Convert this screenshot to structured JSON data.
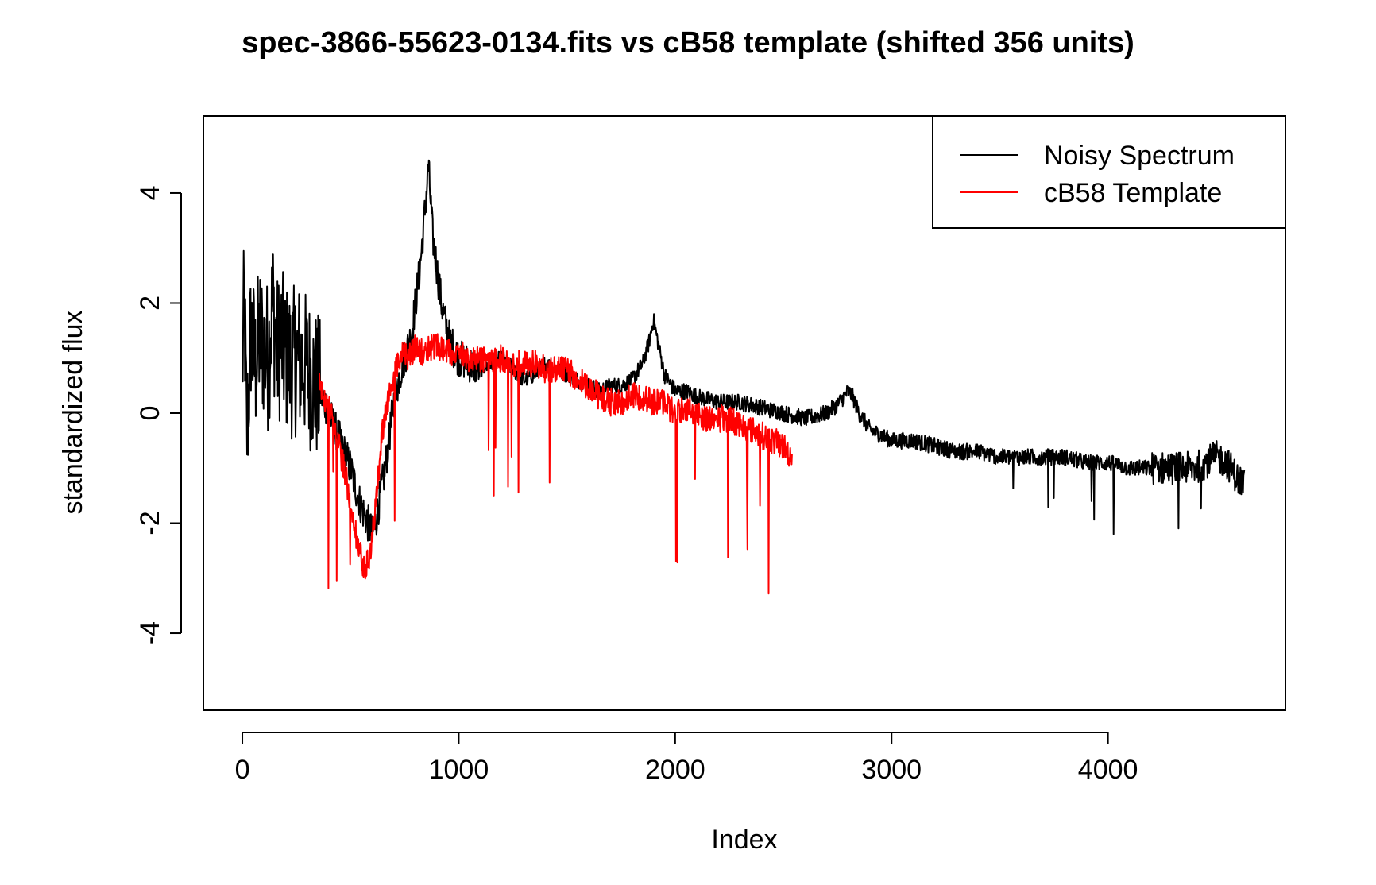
{
  "chart_data": {
    "type": "line",
    "title": "spec-3866-55623-0134.fits vs cB58 template (shifted 356 units)",
    "xlabel": "Index",
    "ylabel": "standardized flux",
    "xlim": [
      -180,
      4820
    ],
    "ylim": [
      -5.4,
      5.4
    ],
    "x_ticks": [
      0,
      1000,
      2000,
      3000,
      4000
    ],
    "y_ticks": [
      -4,
      -2,
      0,
      2,
      4
    ],
    "grid": false,
    "legend_position": "top-right",
    "series": [
      {
        "name": "Noisy Spectrum",
        "color": "#000000",
        "x": [
          0,
          10,
          20,
          40,
          60,
          80,
          100,
          120,
          140,
          160,
          180,
          200,
          230,
          260,
          300,
          340,
          380,
          420,
          460,
          500,
          540,
          580,
          600,
          620,
          660,
          700,
          740,
          780,
          800,
          820,
          840,
          860,
          880,
          900,
          920,
          940,
          960,
          1000,
          1050,
          1100,
          1150,
          1200,
          1250,
          1300,
          1350,
          1400,
          1450,
          1500,
          1550,
          1600,
          1650,
          1700,
          1750,
          1800,
          1850,
          1880,
          1900,
          1920,
          1950,
          2000,
          2050,
          2100,
          2200,
          2300,
          2400,
          2500,
          2600,
          2700,
          2750,
          2780,
          2800,
          2820,
          2850,
          2900,
          3000,
          3100,
          3200,
          3300,
          3400,
          3500,
          3600,
          3700,
          3800,
          3900,
          4000,
          4100,
          4200,
          4300,
          4400,
          4450,
          4500,
          4550,
          4600,
          4630
        ],
        "y": [
          0.9,
          2.0,
          -0.5,
          1.5,
          0.8,
          1.4,
          1.2,
          1.0,
          2.0,
          1.1,
          1.3,
          1.0,
          0.9,
          1.0,
          0.8,
          0.5,
          0.2,
          -0.2,
          -0.6,
          -1.0,
          -1.6,
          -2.0,
          -2.2,
          -1.9,
          -1.0,
          0.2,
          0.9,
          1.4,
          2.0,
          2.6,
          3.5,
          4.5,
          3.2,
          2.6,
          2.0,
          1.6,
          1.3,
          1.0,
          0.9,
          0.8,
          0.9,
          1.0,
          0.8,
          0.6,
          0.7,
          0.9,
          0.8,
          0.7,
          0.6,
          0.5,
          0.4,
          0.5,
          0.5,
          0.6,
          0.9,
          1.3,
          1.7,
          1.3,
          0.7,
          0.4,
          0.4,
          0.3,
          0.2,
          0.2,
          0.1,
          0.0,
          -0.1,
          0.0,
          0.15,
          0.3,
          0.4,
          0.3,
          0.0,
          -0.3,
          -0.5,
          -0.5,
          -0.6,
          -0.7,
          -0.7,
          -0.8,
          -0.8,
          -0.8,
          -0.8,
          -0.9,
          -0.9,
          -1.0,
          -1.0,
          -1.0,
          -1.0,
          -0.9,
          -0.8,
          -0.9,
          -1.2,
          -1.3
        ]
      },
      {
        "name": "cB58 Template",
        "color": "#ff0000",
        "x": [
          356,
          380,
          410,
          440,
          470,
          500,
          520,
          540,
          560,
          580,
          600,
          620,
          640,
          660,
          680,
          700,
          720,
          740,
          760,
          780,
          800,
          830,
          860,
          900,
          950,
          1000,
          1050,
          1100,
          1150,
          1200,
          1250,
          1300,
          1350,
          1400,
          1450,
          1500,
          1550,
          1600,
          1650,
          1700,
          1750,
          1800,
          1850,
          1900,
          1950,
          2000,
          2050,
          2100,
          2150,
          2200,
          2250,
          2300,
          2350,
          2400,
          2450,
          2500,
          2540
        ],
        "y": [
          0.5,
          0.3,
          0.0,
          -0.5,
          -1.0,
          -1.6,
          -2.1,
          -2.5,
          -2.8,
          -2.7,
          -2.3,
          -1.5,
          -0.6,
          0.0,
          0.3,
          0.7,
          0.9,
          1.1,
          1.0,
          1.1,
          1.2,
          1.1,
          1.2,
          1.2,
          1.1,
          1.1,
          1.0,
          1.0,
          0.9,
          1.0,
          0.9,
          0.9,
          0.9,
          0.8,
          0.8,
          0.8,
          0.6,
          0.5,
          0.3,
          0.2,
          0.2,
          0.3,
          0.3,
          0.2,
          0.2,
          0.0,
          0.1,
          0.0,
          -0.1,
          -0.1,
          -0.1,
          -0.2,
          -0.3,
          -0.4,
          -0.5,
          -0.6,
          -0.8
        ]
      }
    ]
  }
}
